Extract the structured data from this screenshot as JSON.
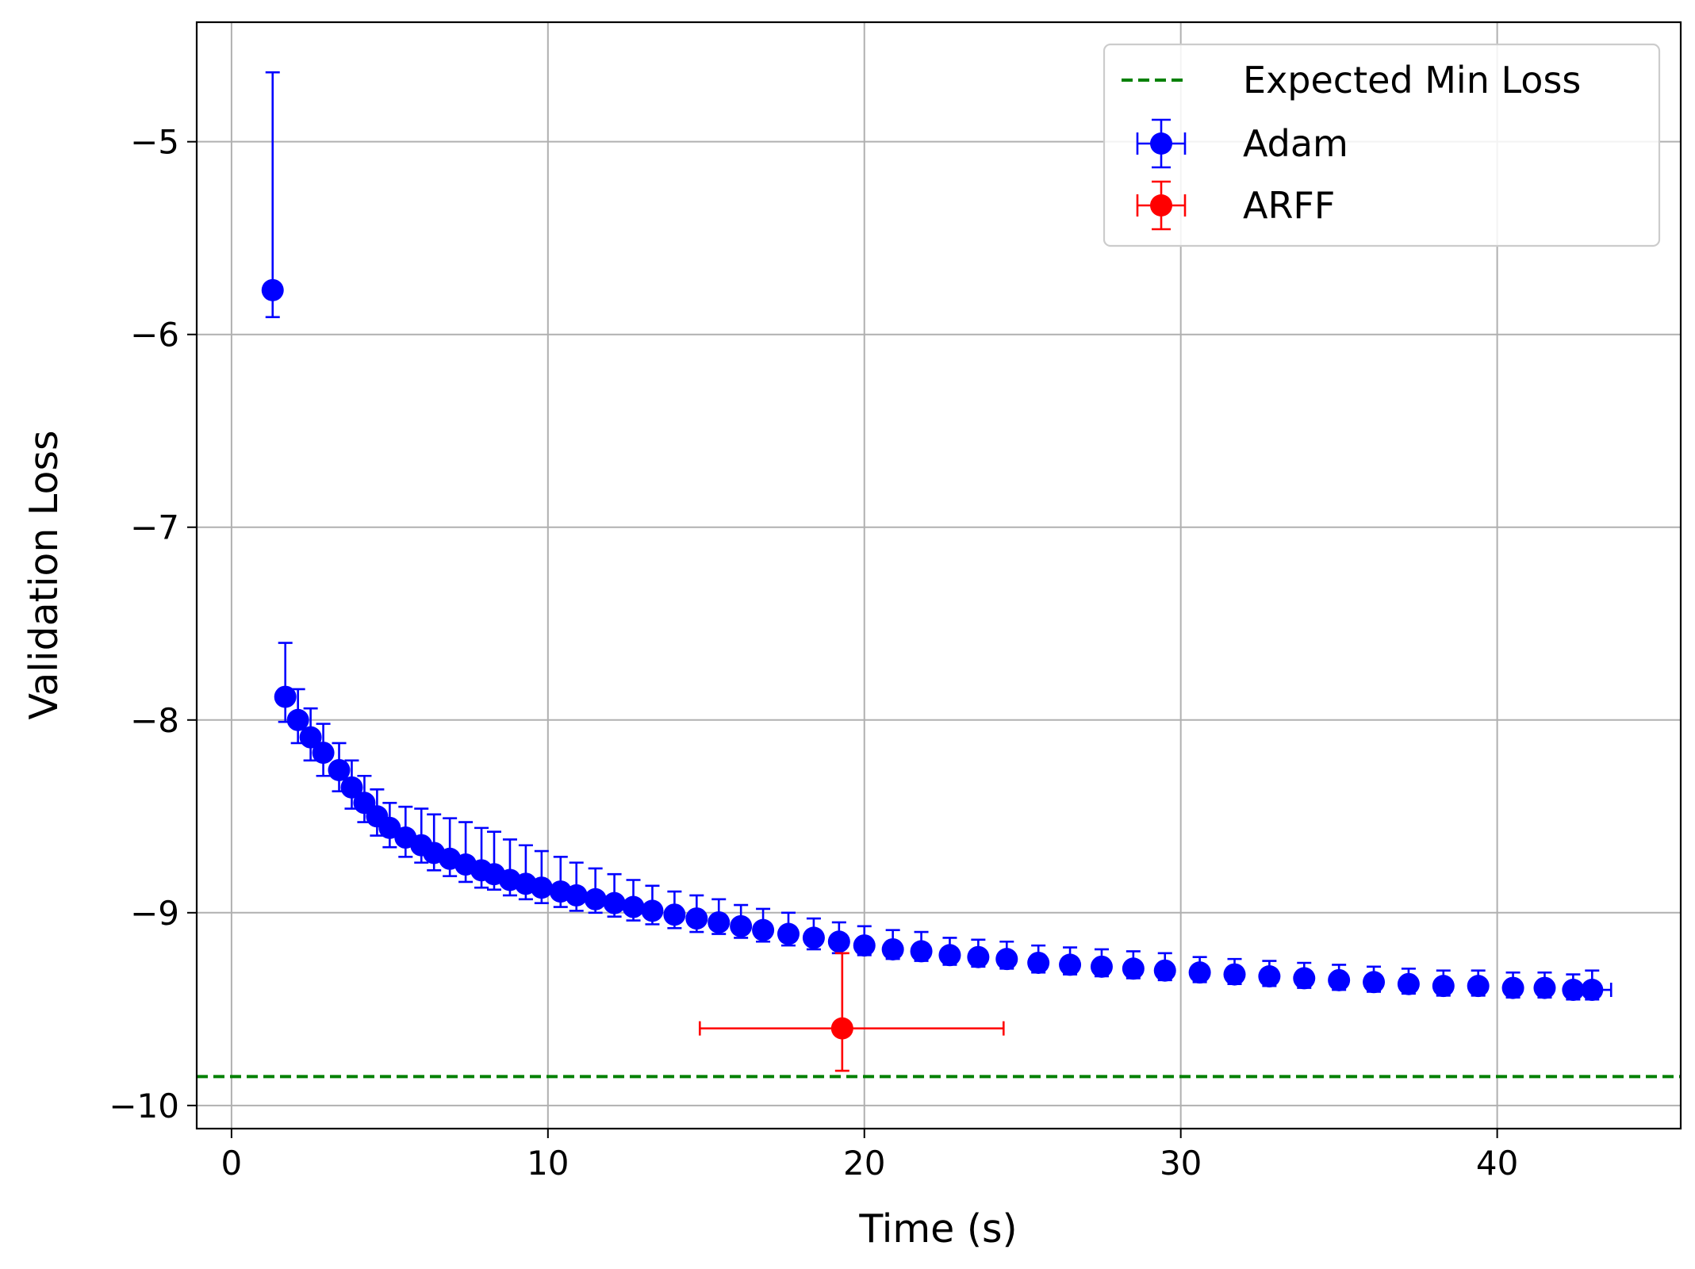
{
  "chart_data": {
    "type": "scatter",
    "title": "",
    "xlabel": "Time (s)",
    "ylabel": "Validation Loss",
    "xlim": [
      -1.1,
      45.8
    ],
    "ylim": [
      -10.12,
      -4.38
    ],
    "xticks": [
      0,
      10,
      20,
      30,
      40
    ],
    "yticks": [
      -10,
      -9,
      -8,
      -7,
      -6,
      -5
    ],
    "grid": true,
    "legend_position": "top-right",
    "reference_line": {
      "name": "Expected Min Loss",
      "y": -9.85,
      "style": "dashed",
      "color": "#008000"
    },
    "series": [
      {
        "name": "Adam",
        "color": "#0000ff",
        "marker": "circle",
        "x": [
          1.3,
          1.7,
          2.1,
          2.5,
          2.9,
          3.4,
          3.8,
          4.2,
          4.6,
          5.0,
          5.5,
          6.0,
          6.4,
          6.9,
          7.4,
          7.9,
          8.3,
          8.8,
          9.3,
          9.8,
          10.4,
          10.9,
          11.5,
          12.1,
          12.7,
          13.3,
          14.0,
          14.7,
          15.4,
          16.1,
          16.8,
          17.6,
          18.4,
          19.2,
          20.0,
          20.9,
          21.8,
          22.7,
          23.6,
          24.5,
          25.5,
          26.5,
          27.5,
          28.5,
          29.5,
          30.6,
          31.7,
          32.8,
          33.9,
          35.0,
          36.1,
          37.2,
          38.3,
          39.4,
          40.5,
          41.5,
          42.4,
          43.0
        ],
        "y": [
          -5.77,
          -7.88,
          -8.0,
          -8.09,
          -8.17,
          -8.26,
          -8.35,
          -8.43,
          -8.5,
          -8.56,
          -8.61,
          -8.65,
          -8.69,
          -8.72,
          -8.75,
          -8.78,
          -8.8,
          -8.83,
          -8.85,
          -8.87,
          -8.89,
          -8.91,
          -8.93,
          -8.95,
          -8.97,
          -8.99,
          -9.01,
          -9.03,
          -9.05,
          -9.07,
          -9.09,
          -9.11,
          -9.13,
          -9.15,
          -9.17,
          -9.19,
          -9.2,
          -9.22,
          -9.23,
          -9.24,
          -9.26,
          -9.27,
          -9.28,
          -9.29,
          -9.3,
          -9.31,
          -9.32,
          -9.33,
          -9.34,
          -9.35,
          -9.36,
          -9.37,
          -9.38,
          -9.38,
          -9.39,
          -9.39,
          -9.4,
          -9.4
        ],
        "yerr_low": [
          0.14,
          0.13,
          0.12,
          0.12,
          0.12,
          0.11,
          0.11,
          0.1,
          0.1,
          0.1,
          0.1,
          0.09,
          0.09,
          0.09,
          0.09,
          0.09,
          0.08,
          0.08,
          0.08,
          0.08,
          0.08,
          0.08,
          0.07,
          0.07,
          0.07,
          0.07,
          0.07,
          0.07,
          0.06,
          0.06,
          0.06,
          0.06,
          0.06,
          0.06,
          0.05,
          0.05,
          0.05,
          0.05,
          0.05,
          0.05,
          0.05,
          0.05,
          0.05,
          0.05,
          0.05,
          0.05,
          0.05,
          0.05,
          0.05,
          0.05,
          0.05,
          0.05,
          0.05,
          0.05,
          0.05,
          0.05,
          0.05,
          0.05
        ],
        "yerr_high": [
          1.13,
          0.28,
          0.16,
          0.15,
          0.15,
          0.14,
          0.14,
          0.14,
          0.14,
          0.13,
          0.16,
          0.19,
          0.2,
          0.21,
          0.22,
          0.22,
          0.22,
          0.21,
          0.2,
          0.19,
          0.18,
          0.17,
          0.16,
          0.15,
          0.14,
          0.13,
          0.12,
          0.12,
          0.12,
          0.11,
          0.11,
          0.11,
          0.1,
          0.1,
          0.1,
          0.1,
          0.1,
          0.09,
          0.09,
          0.09,
          0.09,
          0.09,
          0.09,
          0.09,
          0.09,
          0.08,
          0.08,
          0.08,
          0.08,
          0.08,
          0.08,
          0.08,
          0.08,
          0.08,
          0.08,
          0.08,
          0.08,
          0.1
        ],
        "xerr": [
          0.1,
          0.1,
          0.1,
          0.1,
          0.1,
          0.1,
          0.1,
          0.1,
          0.1,
          0.1,
          0.1,
          0.1,
          0.1,
          0.1,
          0.1,
          0.1,
          0.1,
          0.1,
          0.1,
          0.1,
          0.1,
          0.1,
          0.1,
          0.1,
          0.1,
          0.1,
          0.1,
          0.1,
          0.1,
          0.1,
          0.1,
          0.1,
          0.1,
          0.1,
          0.1,
          0.1,
          0.1,
          0.1,
          0.1,
          0.1,
          0.1,
          0.1,
          0.1,
          0.1,
          0.1,
          0.1,
          0.1,
          0.1,
          0.1,
          0.1,
          0.1,
          0.1,
          0.1,
          0.1,
          0.1,
          0.1,
          0.1,
          0.6
        ]
      },
      {
        "name": "ARFF",
        "color": "#ff0000",
        "marker": "circle",
        "x": [
          19.3
        ],
        "y": [
          -9.6
        ],
        "yerr_low": [
          0.22
        ],
        "yerr_high": [
          0.39
        ],
        "xerr_low": [
          4.5
        ],
        "xerr_high": [
          5.1
        ]
      }
    ]
  }
}
